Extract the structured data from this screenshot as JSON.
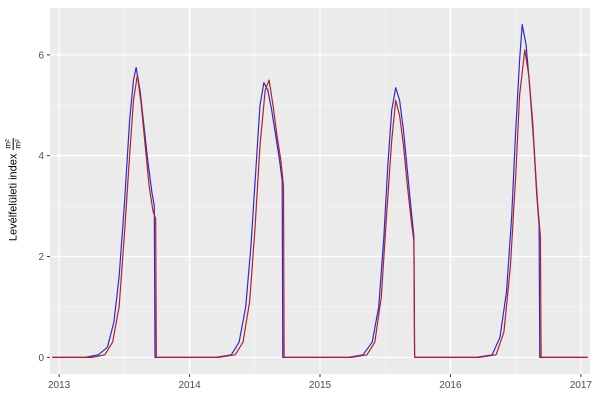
{
  "chart_data": {
    "type": "line",
    "title": "",
    "xlabel": "",
    "ylabel": "Levélfelületi index",
    "ylabel_fraction_numerator": "m²",
    "ylabel_fraction_denominator": "m²",
    "xlim": [
      2012.93,
      2017.07
    ],
    "ylim": [
      -0.33,
      6.93
    ],
    "x_ticks": [
      2013,
      2014,
      2015,
      2016,
      2017
    ],
    "y_ticks": [
      0,
      2,
      4,
      6
    ],
    "x_minor_ticks": [
      2013.5,
      2014.5,
      2015.5,
      2016.5
    ],
    "y_minor_ticks": [
      1,
      3,
      5
    ],
    "grid": true,
    "legend_position": "none",
    "panel_bg": "#EBEBEB",
    "grid_major_color": "#FFFFFF",
    "grid_minor_color": "#F4F4F4",
    "tick_label_color": "#4D4D4D",
    "tick_mark_color": "#333333",
    "series": [
      {
        "name": "series-blue",
        "color": "#2A2AD6",
        "points": [
          [
            2012.95,
            0
          ],
          [
            2013.2,
            0
          ],
          [
            2013.3,
            0.05
          ],
          [
            2013.37,
            0.2
          ],
          [
            2013.42,
            0.7
          ],
          [
            2013.46,
            1.6
          ],
          [
            2013.5,
            3.0
          ],
          [
            2013.54,
            4.7
          ],
          [
            2013.57,
            5.5
          ],
          [
            2013.59,
            5.75
          ],
          [
            2013.62,
            5.3
          ],
          [
            2013.65,
            4.6
          ],
          [
            2013.68,
            3.9
          ],
          [
            2013.71,
            3.3
          ],
          [
            2013.73,
            3.0
          ],
          [
            2013.735,
            0
          ],
          [
            2014.2,
            0
          ],
          [
            2014.32,
            0.05
          ],
          [
            2014.38,
            0.3
          ],
          [
            2014.43,
            1.0
          ],
          [
            2014.47,
            2.2
          ],
          [
            2014.51,
            3.8
          ],
          [
            2014.54,
            5.0
          ],
          [
            2014.57,
            5.45
          ],
          [
            2014.6,
            5.3
          ],
          [
            2014.63,
            4.9
          ],
          [
            2014.66,
            4.4
          ],
          [
            2014.69,
            3.9
          ],
          [
            2014.71,
            3.5
          ],
          [
            2014.715,
            0
          ],
          [
            2015.22,
            0
          ],
          [
            2015.33,
            0.05
          ],
          [
            2015.4,
            0.3
          ],
          [
            2015.45,
            1.0
          ],
          [
            2015.49,
            2.4
          ],
          [
            2015.52,
            3.8
          ],
          [
            2015.55,
            4.9
          ],
          [
            2015.58,
            5.35
          ],
          [
            2015.61,
            5.1
          ],
          [
            2015.64,
            4.5
          ],
          [
            2015.67,
            3.7
          ],
          [
            2015.7,
            2.9
          ],
          [
            2015.72,
            2.4
          ],
          [
            2015.725,
            0
          ],
          [
            2016.2,
            0
          ],
          [
            2016.32,
            0.05
          ],
          [
            2016.38,
            0.4
          ],
          [
            2016.43,
            1.3
          ],
          [
            2016.47,
            2.8
          ],
          [
            2016.5,
            4.5
          ],
          [
            2016.53,
            5.9
          ],
          [
            2016.55,
            6.6
          ],
          [
            2016.58,
            6.2
          ],
          [
            2016.61,
            5.3
          ],
          [
            2016.64,
            4.2
          ],
          [
            2016.66,
            3.3
          ],
          [
            2016.68,
            2.6
          ],
          [
            2016.685,
            0
          ],
          [
            2017.05,
            0
          ]
        ]
      },
      {
        "name": "series-red",
        "color": "#B22222",
        "points": [
          [
            2012.95,
            0
          ],
          [
            2013.25,
            0
          ],
          [
            2013.35,
            0.05
          ],
          [
            2013.41,
            0.3
          ],
          [
            2013.46,
            1.0
          ],
          [
            2013.5,
            2.4
          ],
          [
            2013.54,
            4.0
          ],
          [
            2013.57,
            5.1
          ],
          [
            2013.6,
            5.6
          ],
          [
            2013.63,
            5.0
          ],
          [
            2013.66,
            4.2
          ],
          [
            2013.69,
            3.4
          ],
          [
            2013.72,
            2.9
          ],
          [
            2013.74,
            2.75
          ],
          [
            2013.745,
            0
          ],
          [
            2014.22,
            0
          ],
          [
            2014.35,
            0.05
          ],
          [
            2014.41,
            0.3
          ],
          [
            2014.46,
            1.1
          ],
          [
            2014.5,
            2.5
          ],
          [
            2014.54,
            4.2
          ],
          [
            2014.58,
            5.3
          ],
          [
            2014.61,
            5.5
          ],
          [
            2014.64,
            5.0
          ],
          [
            2014.67,
            4.4
          ],
          [
            2014.7,
            3.9
          ],
          [
            2014.72,
            3.4
          ],
          [
            2014.725,
            0
          ],
          [
            2015.24,
            0
          ],
          [
            2015.36,
            0.05
          ],
          [
            2015.42,
            0.3
          ],
          [
            2015.47,
            1.2
          ],
          [
            2015.51,
            2.8
          ],
          [
            2015.55,
            4.3
          ],
          [
            2015.58,
            5.1
          ],
          [
            2015.61,
            4.8
          ],
          [
            2015.64,
            4.2
          ],
          [
            2015.67,
            3.4
          ],
          [
            2015.7,
            2.7
          ],
          [
            2015.72,
            2.3
          ],
          [
            2015.725,
            0
          ],
          [
            2016.22,
            0
          ],
          [
            2016.35,
            0.05
          ],
          [
            2016.41,
            0.5
          ],
          [
            2016.46,
            1.8
          ],
          [
            2016.5,
            3.6
          ],
          [
            2016.53,
            5.2
          ],
          [
            2016.57,
            6.1
          ],
          [
            2016.6,
            5.6
          ],
          [
            2016.63,
            4.7
          ],
          [
            2016.65,
            3.8
          ],
          [
            2016.67,
            3.0
          ],
          [
            2016.69,
            2.4
          ],
          [
            2016.695,
            0
          ],
          [
            2017.05,
            0
          ]
        ]
      }
    ]
  }
}
